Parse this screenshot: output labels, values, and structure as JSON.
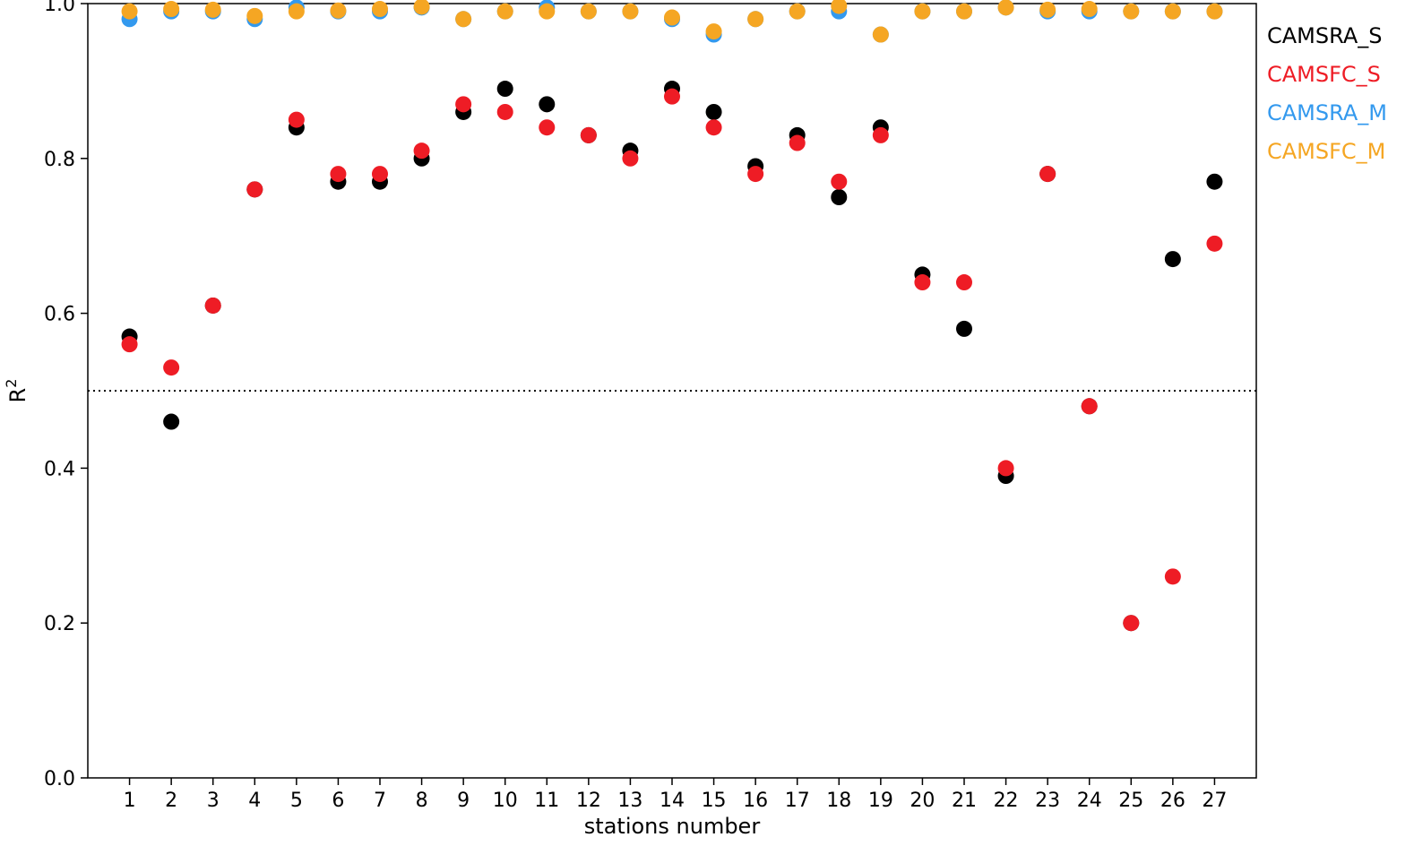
{
  "chart_data": {
    "type": "scatter",
    "title": "",
    "xlabel": "stations number",
    "ylabel": "R",
    "ylabel_superscript": "2",
    "ylim": [
      0.0,
      1.0
    ],
    "xlim": [
      0,
      28
    ],
    "yticks": [
      "0.0",
      "0.2",
      "0.4",
      "0.6",
      "0.8",
      "1.0"
    ],
    "x": [
      1,
      2,
      3,
      4,
      5,
      6,
      7,
      8,
      9,
      10,
      11,
      12,
      13,
      14,
      15,
      16,
      17,
      18,
      19,
      20,
      21,
      22,
      23,
      24,
      25,
      26,
      27
    ],
    "xtick_labels": [
      "1",
      "2",
      "3",
      "4",
      "5",
      "6",
      "7",
      "8",
      "9",
      "10",
      "11",
      "12",
      "13",
      "14",
      "15",
      "16",
      "17",
      "18",
      "19",
      "20",
      "21",
      "22",
      "23",
      "24",
      "25",
      "26",
      "27"
    ],
    "reference_line": {
      "y": 0.5,
      "style": "dotted"
    },
    "legend_placement": "outside-right-top",
    "grid": false,
    "series": [
      {
        "name": "CAMSRA_S",
        "color": "#000000",
        "values": [
          0.57,
          0.46,
          0.61,
          0.76,
          0.84,
          0.77,
          0.77,
          0.8,
          0.86,
          0.89,
          0.87,
          0.83,
          0.81,
          0.89,
          0.86,
          0.79,
          0.83,
          0.75,
          0.84,
          0.65,
          0.58,
          0.39,
          0.78,
          0.48,
          0.2,
          0.67,
          0.77
        ]
      },
      {
        "name": "CAMSFC_S",
        "color": "#ee1c25",
        "values": [
          0.56,
          0.53,
          0.61,
          0.76,
          0.85,
          0.78,
          0.78,
          0.81,
          0.87,
          0.86,
          0.84,
          0.83,
          0.8,
          0.88,
          0.84,
          0.78,
          0.82,
          0.77,
          0.83,
          0.64,
          0.64,
          0.4,
          0.78,
          0.48,
          0.2,
          0.26,
          0.69
        ]
      },
      {
        "name": "CAMSRA_M",
        "color": "#3399ee",
        "values": [
          0.98,
          0.99,
          0.99,
          0.98,
          0.995,
          0.99,
          0.99,
          0.995,
          0.98,
          0.99,
          0.995,
          0.99,
          0.99,
          0.98,
          0.96,
          0.98,
          0.99,
          0.99,
          0.96,
          0.99,
          0.99,
          0.995,
          0.99,
          0.99,
          0.99,
          0.99,
          0.99
        ]
      },
      {
        "name": "CAMSFC_M",
        "color": "#f5a623",
        "values": [
          0.99,
          0.993,
          0.992,
          0.984,
          0.99,
          0.991,
          0.993,
          0.996,
          0.98,
          0.99,
          0.99,
          0.99,
          0.99,
          0.982,
          0.964,
          0.98,
          0.99,
          0.997,
          0.96,
          0.99,
          0.99,
          0.995,
          0.992,
          0.993,
          0.99,
          0.99,
          0.99
        ]
      }
    ]
  }
}
